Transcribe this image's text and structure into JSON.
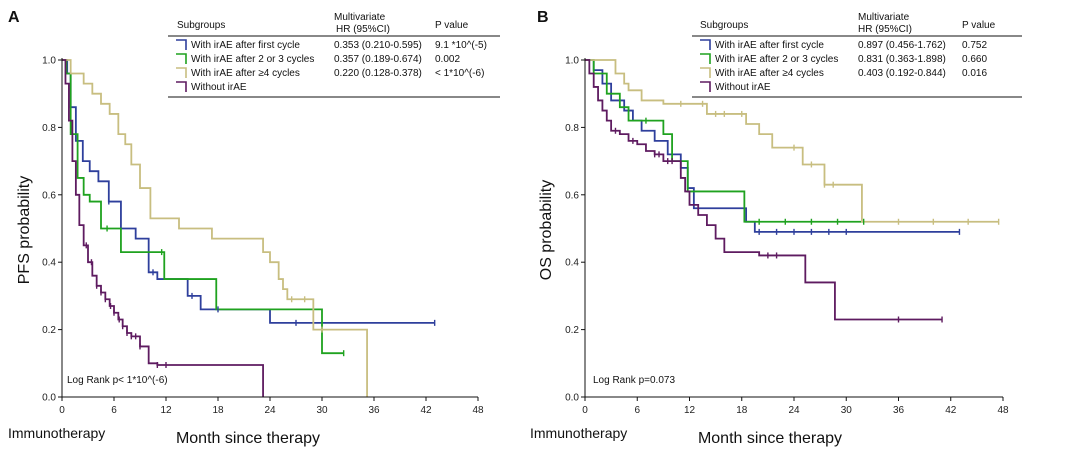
{
  "chart_data": [
    {
      "type": "line",
      "panel_label": "A",
      "ylabel": "PFS probability",
      "xlabel": "Month since therapy",
      "x_prefix_label": "Immunotherapy",
      "xlim": [
        0,
        48
      ],
      "ylim": [
        0,
        1.0
      ],
      "xticks": [
        0,
        6,
        12,
        18,
        24,
        30,
        36,
        42,
        48
      ],
      "yticks": [
        0.0,
        0.2,
        0.4,
        0.6,
        0.8,
        1.0
      ],
      "log_rank": "Log Rank p< 1*10^(-6)",
      "legend": {
        "header": [
          "Subgroups",
          "Multivariate",
          "HR (95%CI)",
          "P value"
        ],
        "rows": [
          {
            "label": "With irAE after first cycle",
            "hr": "0.353 (0.210-0.595)",
            "p": "9.1 *10^(-5)"
          },
          {
            "label": "With irAE after 2 or 3 cycles",
            "hr": "0.357 (0.189-0.674)",
            "p": "0.002"
          },
          {
            "label": "With irAE after ≥4 cycles",
            "hr": "0.220 (0.128-0.378)",
            "p": "< 1*10^(-6)"
          },
          {
            "label": "Without irAE",
            "hr": "",
            "p": ""
          }
        ]
      },
      "series": [
        {
          "name": "With irAE after first cycle",
          "color": "#2E3F9C",
          "x": [
            0,
            0.6,
            1,
            1.6,
            2.4,
            3.2,
            4.2,
            5.4,
            6.8,
            8.5,
            10,
            11,
            14.5,
            16,
            24,
            28,
            43
          ],
          "y": [
            1,
            0.96,
            0.86,
            0.76,
            0.7,
            0.67,
            0.64,
            0.58,
            0.5,
            0.47,
            0.37,
            0.35,
            0.3,
            0.26,
            0.22,
            0.22,
            0.22
          ],
          "censor": [
            5.4,
            10.5,
            15,
            18,
            27,
            43
          ]
        },
        {
          "name": "With irAE after 2 or 3 cycles",
          "color": "#1FA21F",
          "x": [
            0,
            0.5,
            1,
            1.8,
            2.5,
            3.2,
            4.5,
            6.8,
            10,
            11.8,
            17.8,
            30,
            32.5
          ],
          "y": [
            1,
            0.96,
            0.78,
            0.65,
            0.6,
            0.58,
            0.5,
            0.43,
            0.43,
            0.35,
            0.26,
            0.13,
            0.13
          ],
          "censor": [
            5.2,
            11.5,
            32.5
          ]
        },
        {
          "name": "With irAE after ≥4 cycles",
          "color": "#C8BE80",
          "x": [
            0,
            1,
            2.5,
            3.5,
            4.5,
            5.5,
            6.5,
            7.3,
            8,
            9,
            10.2,
            13.5,
            15.5,
            17.3,
            19.5,
            22,
            23.2,
            24,
            25,
            25.5,
            26,
            27.5,
            29,
            32,
            33,
            34,
            35.2
          ],
          "y": [
            1,
            0.96,
            0.93,
            0.9,
            0.87,
            0.84,
            0.78,
            0.75,
            0.69,
            0.62,
            0.53,
            0.5,
            0.5,
            0.47,
            0.47,
            0.47,
            0.43,
            0.4,
            0.35,
            0.32,
            0.29,
            0.29,
            0.2,
            0.2,
            0.2,
            0.2,
            0
          ],
          "censor": [
            26.5,
            28,
            30
          ]
        },
        {
          "name": "Without irAE",
          "color": "#5E1B60",
          "x": [
            0,
            0.4,
            0.8,
            1.2,
            1.6,
            2,
            2.5,
            3,
            3.5,
            4,
            4.5,
            5,
            5.5,
            6,
            6.5,
            7,
            7.5,
            8,
            9,
            10,
            11,
            13,
            23,
            23.2
          ],
          "y": [
            1,
            0.93,
            0.82,
            0.7,
            0.6,
            0.51,
            0.45,
            0.4,
            0.36,
            0.33,
            0.31,
            0.29,
            0.27,
            0.25,
            0.23,
            0.21,
            0.19,
            0.18,
            0.15,
            0.1,
            0.095,
            0.095,
            0.095,
            0
          ],
          "censor": [
            2.8,
            3.4,
            4,
            4.5,
            5,
            5.6,
            6,
            6.6,
            7,
            7.5,
            8,
            8.5,
            9,
            11,
            12
          ]
        }
      ]
    },
    {
      "type": "line",
      "panel_label": "B",
      "ylabel": "OS probability",
      "xlabel": "Month since therapy",
      "x_prefix_label": "Immunotherapy",
      "xlim": [
        0,
        48
      ],
      "ylim": [
        0,
        1.0
      ],
      "xticks": [
        0,
        6,
        12,
        18,
        24,
        30,
        36,
        42,
        48
      ],
      "yticks": [
        0.0,
        0.2,
        0.4,
        0.6,
        0.8,
        1.0
      ],
      "log_rank": "Log Rank p=0.073",
      "legend": {
        "header": [
          "Subgroups",
          "Multivariate",
          "HR (95%CI)",
          "P value"
        ],
        "rows": [
          {
            "label": "With irAE after first cycle",
            "hr": "0.897 (0.456-1.762)",
            "p": "0.752"
          },
          {
            "label": "With irAE after 2 or 3 cycles",
            "hr": "0.831 (0.363-1.898)",
            "p": "0.660"
          },
          {
            "label": "With irAE after ≥4 cycles",
            "hr": "0.403 (0.192-0.844)",
            "p": "0.016"
          },
          {
            "label": "Without irAE",
            "hr": "",
            "p": ""
          }
        ]
      },
      "series": [
        {
          "name": "With irAE after first cycle",
          "color": "#2E3F9C",
          "x": [
            0,
            1,
            2,
            3,
            4.5,
            5.5,
            6.5,
            8,
            9.5,
            11,
            11.8,
            12.5,
            18.5,
            19.5,
            43
          ],
          "y": [
            1,
            0.97,
            0.93,
            0.88,
            0.85,
            0.82,
            0.79,
            0.76,
            0.72,
            0.68,
            0.62,
            0.56,
            0.52,
            0.49,
            0.49
          ],
          "censor": [
            20,
            22,
            24,
            26,
            28,
            30,
            43
          ]
        },
        {
          "name": "With irAE after 2 or 3 cycles",
          "color": "#1FA21F",
          "x": [
            0,
            1,
            2.5,
            4,
            5,
            7,
            9,
            10,
            11.8,
            18.3,
            32
          ],
          "y": [
            1,
            0.96,
            0.9,
            0.86,
            0.82,
            0.82,
            0.78,
            0.7,
            0.61,
            0.52,
            0.52
          ],
          "censor": [
            7,
            20,
            23,
            26,
            29,
            32
          ]
        },
        {
          "name": "With irAE after ≥4 cycles",
          "color": "#C8BE80",
          "x": [
            0,
            3.5,
            4.5,
            5,
            6.5,
            9,
            10.8,
            12,
            14,
            17,
            18.5,
            20,
            21.5,
            23,
            25,
            27.5,
            29,
            31.8,
            32,
            47.5
          ],
          "y": [
            1,
            0.96,
            0.93,
            0.91,
            0.88,
            0.87,
            0.87,
            0.87,
            0.84,
            0.84,
            0.81,
            0.78,
            0.74,
            0.74,
            0.69,
            0.63,
            0.63,
            0.52,
            0.52,
            0.52
          ],
          "censor": [
            11,
            13.5,
            15,
            16,
            18,
            24,
            26,
            27.5,
            28.5,
            36,
            40,
            44,
            47.5
          ]
        },
        {
          "name": "Without irAE",
          "color": "#5E1B60",
          "x": [
            0,
            0.5,
            1,
            1.5,
            2,
            2.5,
            3,
            4,
            5,
            6,
            7,
            8,
            9,
            10,
            11,
            11.5,
            12,
            13,
            14,
            15,
            16,
            20,
            24.5,
            25.3,
            28.7,
            41
          ],
          "y": [
            1,
            0.96,
            0.92,
            0.88,
            0.85,
            0.82,
            0.79,
            0.78,
            0.76,
            0.75,
            0.73,
            0.72,
            0.7,
            0.7,
            0.65,
            0.61,
            0.57,
            0.54,
            0.51,
            0.47,
            0.43,
            0.42,
            0.42,
            0.34,
            0.23,
            0.23
          ],
          "censor": [
            3.5,
            5.5,
            8,
            8.5,
            9.5,
            10,
            21,
            22,
            36,
            41
          ]
        }
      ]
    }
  ]
}
